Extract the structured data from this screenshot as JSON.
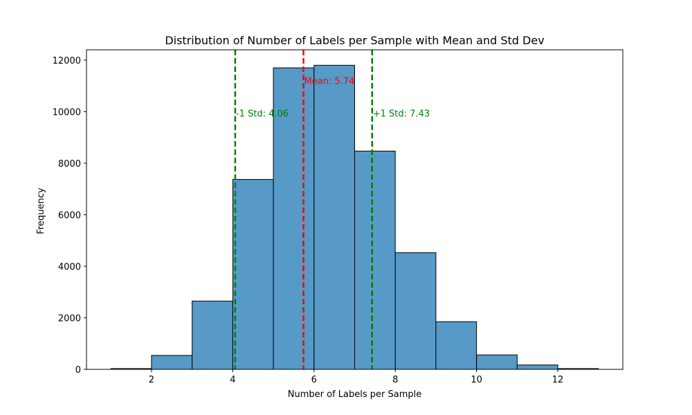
{
  "chart_data": {
    "type": "bar",
    "title": "Distribution of Number of Labels per Sample with Mean and Std Dev",
    "xlabel": "Number of Labels per Sample",
    "ylabel": "Frequency",
    "xlim": [
      0.4,
      13.6
    ],
    "ylim": [
      0,
      12400
    ],
    "xticks": [
      2,
      4,
      6,
      8,
      10,
      12
    ],
    "yticks": [
      0,
      2000,
      4000,
      6000,
      8000,
      10000,
      12000
    ],
    "bins": [
      {
        "left": 1,
        "right": 2,
        "value": 30
      },
      {
        "left": 2,
        "right": 3,
        "value": 540
      },
      {
        "left": 3,
        "right": 4,
        "value": 2650
      },
      {
        "left": 4,
        "right": 5,
        "value": 7370
      },
      {
        "left": 5,
        "right": 6,
        "value": 11700
      },
      {
        "left": 6,
        "right": 7,
        "value": 11800
      },
      {
        "left": 7,
        "right": 8,
        "value": 8470
      },
      {
        "left": 8,
        "right": 9,
        "value": 4530
      },
      {
        "left": 9,
        "right": 10,
        "value": 1850
      },
      {
        "left": 10,
        "right": 11,
        "value": 560
      },
      {
        "left": 11,
        "right": 12,
        "value": 170
      },
      {
        "left": 12,
        "right": 13,
        "value": 30
      }
    ],
    "bar_color": "#5799c7",
    "bar_edge_color": "#000000",
    "lines": [
      {
        "name": "mean",
        "x": 5.74,
        "label": "Mean: 5.74",
        "label_y": 11200,
        "color": "#ff0000",
        "style": "dashed"
      },
      {
        "name": "minus-std",
        "x": 4.06,
        "label": "-1 Std: 4.06",
        "label_y": 9950,
        "color": "#008000",
        "style": "dashed"
      },
      {
        "name": "plus-std",
        "x": 7.43,
        "label": "+1 Std: 7.43",
        "label_y": 9950,
        "color": "#008000",
        "style": "dashed"
      }
    ],
    "grid": false,
    "legend": "none"
  }
}
